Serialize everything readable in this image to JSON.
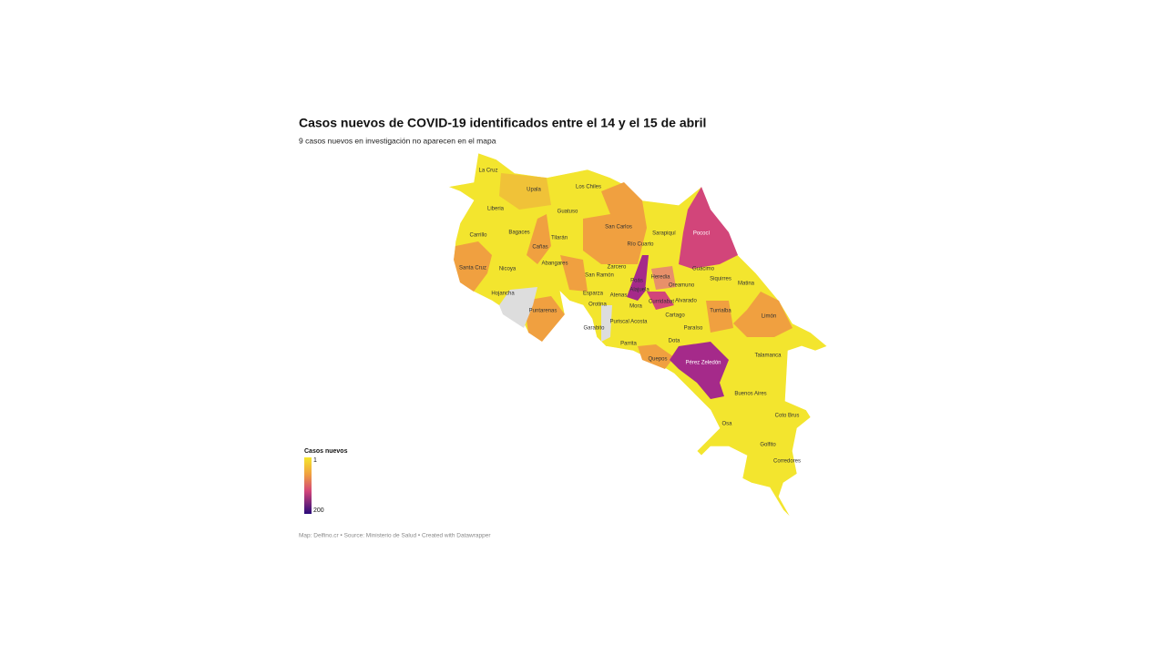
{
  "header": {
    "title": "Casos nuevos de COVID-19 identificados entre el 14 y el 15 de abril",
    "subtitle": "9 casos nuevos en investigación no aparecen en el mapa"
  },
  "legend": {
    "title": "Casos nuevos",
    "ticks": [
      1,
      200
    ]
  },
  "labels": [
    "La Cruz",
    "Upala",
    "Los Chiles",
    "Liberia",
    "Guatuso",
    "San Carlos",
    "Bagaces",
    "Sarapiquí",
    "Pococí",
    "Carrillo",
    "Tilarán",
    "Cañas",
    "Río Cuarto",
    "Abangares",
    "Zarcero",
    "Guácimo",
    "Santa Cruz",
    "Nicoya",
    "San Ramón",
    "Heredia",
    "Siquirres",
    "Poás",
    "Oreamuno",
    "Matina",
    "Alajuela",
    "Hojancha",
    "Esparza",
    "Atenas",
    "Curridabat",
    "Alvarado",
    "Orotina",
    "Mora",
    "Puntarenas",
    "Cartago",
    "Turrialba",
    "Limón",
    "Garabito",
    "Puriscal Acosta",
    "Paraíso",
    "Dota",
    "Parrita",
    "Quepos",
    "Pérez Zeledón",
    "Talamanca",
    "Buenos Aires",
    "Coto Brus",
    "Osa",
    "Golfito",
    "Corredores"
  ],
  "footer": "Map: Delfino.cr • Source: Ministerio de Salud • Created with Datawrapper"
}
